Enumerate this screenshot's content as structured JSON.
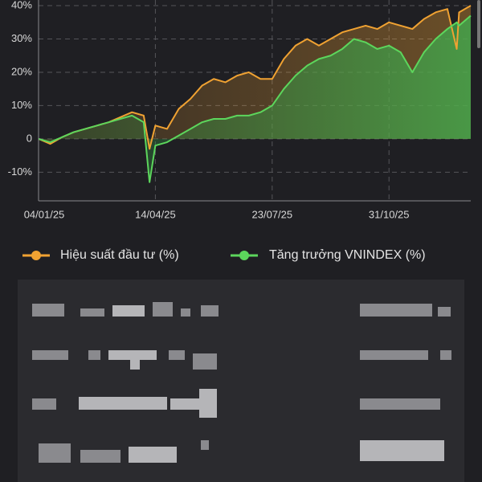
{
  "chart_data": {
    "type": "line",
    "x": [
      "04/01/25",
      "14/01/25",
      "24/01/25",
      "03/02/25",
      "13/02/25",
      "23/02/25",
      "05/03/25",
      "15/03/25",
      "25/03/25",
      "04/04/25",
      "09/04/25",
      "14/04/25",
      "24/04/25",
      "04/05/25",
      "14/05/25",
      "24/05/25",
      "03/06/25",
      "13/06/25",
      "23/06/25",
      "03/07/25",
      "13/07/25",
      "23/07/25",
      "02/08/25",
      "12/08/25",
      "22/08/25",
      "01/09/25",
      "11/09/25",
      "21/09/25",
      "01/10/25",
      "11/10/25",
      "21/10/25",
      "31/10/25",
      "10/11/25",
      "20/11/25",
      "30/11/25",
      "10/12/25",
      "20/12/25",
      "28/12/25",
      "30/12/25",
      "09/01/26"
    ],
    "series": [
      {
        "name": "Hiệu suất đầu tư (%)",
        "color": "#f0a232",
        "values": [
          0,
          -1.5,
          0.5,
          2,
          3,
          4,
          5,
          6.5,
          8,
          7,
          -3,
          4,
          3,
          9,
          12,
          16,
          18,
          17,
          19,
          20,
          18,
          18,
          24,
          28,
          30,
          28,
          30,
          32,
          33,
          34,
          33,
          35,
          34,
          33,
          36,
          38,
          39,
          27,
          38,
          40
        ]
      },
      {
        "name": "Tăng trưởng VNINDEX (%)",
        "color": "#5cd65c",
        "values": [
          0,
          -1,
          0.5,
          2,
          3,
          4,
          5,
          6,
          7,
          5,
          -13,
          -2,
          -1,
          1,
          3,
          5,
          6,
          6,
          7,
          7,
          8,
          10,
          15,
          19,
          22,
          24,
          25,
          27,
          30,
          29,
          27,
          28,
          26,
          20,
          26,
          30,
          33,
          35,
          34,
          37
        ]
      }
    ],
    "ylim": [
      -18.6,
      41.7
    ],
    "yticks": [
      {
        "value": 40,
        "label": "40%"
      },
      {
        "value": 30,
        "label": "30%"
      },
      {
        "value": 20,
        "label": "20%"
      },
      {
        "value": 10,
        "label": "10%"
      },
      0,
      {
        "value": -10,
        "label": "-10%"
      }
    ],
    "xticks": [
      "04/01/25",
      "14/04/25",
      "23/07/25",
      "31/10/25"
    ],
    "grid": true
  }
}
